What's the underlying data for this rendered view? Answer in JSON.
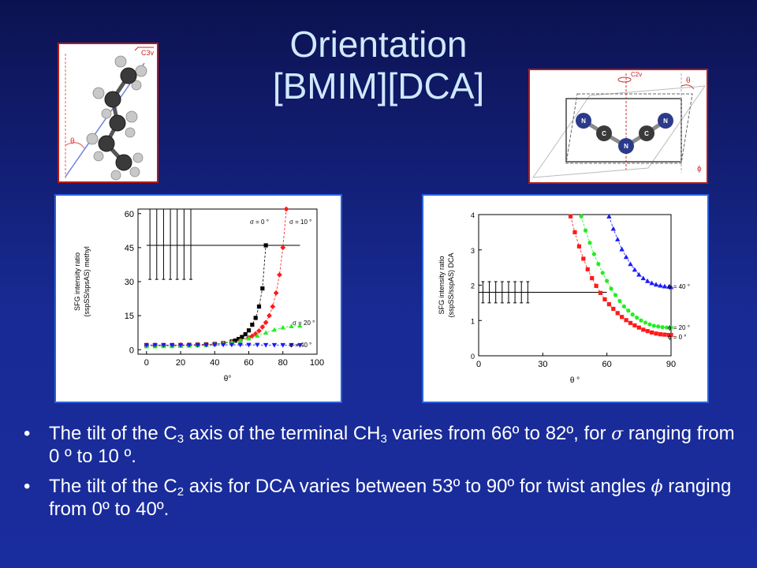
{
  "slide": {
    "title_line1": "Orientation",
    "title_line2": "[BMIM][DCA]",
    "bullets": [
      {
        "p1": "The tilt of the C",
        "sub1": "3",
        "p2": " axis of the terminal CH",
        "sub2": "3",
        "p3": " varies from 66º to 82º, for ",
        "greek": "σ",
        "p4": " ranging from 0 º to 10 º."
      },
      {
        "p1": "The tilt of the C",
        "sub1": "2",
        "p2": " axis for DCA varies between 53º to 90º for twist angles ",
        "greek": "ϕ",
        "p3": " ranging from 0º to 40º."
      }
    ]
  },
  "diagrams": {
    "left_label_axis": "C3v",
    "left_label_angle": "θ",
    "right_label_axis": "C2v",
    "right_label_angle": "θ",
    "right_label_twist": "ϕ",
    "atoms": [
      "N",
      "C",
      "N",
      "C",
      "N"
    ]
  },
  "colors": {
    "black": "#000000",
    "red": "#ff1a1a",
    "green": "#22ee22",
    "blue": "#1a1aff"
  },
  "chart_data": [
    {
      "type": "scatter",
      "xlabel": "θ°",
      "ylabel_line1": "SFG intensity ratio",
      "ylabel_line2": "(sspSS/spsAS) methyl",
      "xlim": [
        -5,
        100
      ],
      "ylim": [
        -2,
        62
      ],
      "xticks": [
        0,
        20,
        40,
        60,
        80,
        100
      ],
      "yticks": [
        0,
        15,
        30,
        45,
        60
      ],
      "reference": {
        "y": 46,
        "x": [
          0,
          90
        ],
        "bars_x": [
          2,
          6,
          10,
          14,
          18,
          22,
          26
        ],
        "bar_low": 31,
        "bar_high": 62
      },
      "series": [
        {
          "name": "σ = 0 °",
          "color": "#000000",
          "marker": "square",
          "x": [
            0,
            5,
            10,
            15,
            20,
            25,
            30,
            35,
            40,
            45,
            50,
            52,
            54,
            56,
            58,
            60,
            62,
            64,
            66,
            68,
            70
          ],
          "y": [
            2,
            2,
            2,
            2,
            2,
            2.1,
            2.2,
            2.3,
            2.5,
            2.9,
            3.6,
            4,
            4.7,
            5.6,
            6.8,
            8.5,
            11,
            14,
            19,
            27,
            46
          ]
        },
        {
          "name": "σ = 10 °",
          "color": "#ff1a1a",
          "marker": "diamond",
          "x": [
            0,
            5,
            10,
            15,
            20,
            25,
            30,
            35,
            40,
            45,
            50,
            55,
            60,
            62,
            64,
            66,
            68,
            70,
            72,
            74,
            76,
            78,
            80,
            82
          ],
          "y": [
            2,
            2,
            2,
            2,
            2.1,
            2.1,
            2.2,
            2.3,
            2.5,
            2.8,
            3.3,
            4,
            5.3,
            6,
            7,
            8.3,
            10,
            12,
            15,
            19,
            25,
            33,
            45,
            62
          ]
        },
        {
          "name": "σ = 20 °",
          "color": "#22ee22",
          "marker": "triangle-up",
          "x": [
            0,
            5,
            10,
            15,
            20,
            25,
            30,
            35,
            40,
            45,
            50,
            55,
            60,
            65,
            70,
            75,
            80,
            85,
            90
          ],
          "y": [
            1.5,
            1.5,
            1.6,
            1.6,
            1.7,
            1.8,
            1.9,
            2.1,
            2.4,
            2.8,
            3.3,
            4,
            5,
            6.2,
            7.5,
            8.8,
            9.8,
            10.4,
            10.6
          ]
        },
        {
          "name": "σ = 40 °",
          "color": "#1a1aff",
          "marker": "triangle-down",
          "x": [
            0,
            5,
            10,
            15,
            20,
            25,
            30,
            35,
            40,
            45,
            50,
            55,
            60,
            65,
            70,
            75,
            80,
            85,
            90
          ],
          "y": [
            2,
            2,
            2,
            2,
            2,
            2,
            2,
            2,
            2.1,
            2.1,
            2.1,
            2.1,
            2.1,
            2.1,
            2,
            2,
            2,
            2,
            2
          ]
        }
      ],
      "annotations": [
        "σ = 0 °",
        "σ = 10 °",
        "σ = 20 °",
        "σ = 40 °"
      ]
    },
    {
      "type": "scatter",
      "xlabel": "θ °",
      "ylabel_line1": "SFG intensity ratio",
      "ylabel_line2": "(sspSS/sspAS) DCA",
      "xlim": [
        0,
        90
      ],
      "ylim": [
        0,
        4
      ],
      "xticks": [
        0,
        30,
        60,
        90
      ],
      "yticks": [
        0,
        1,
        2,
        3,
        4
      ],
      "reference": {
        "y": 1.8,
        "x": [
          0,
          60
        ],
        "bars_x": [
          2,
          5,
          8,
          11,
          14,
          17,
          20,
          23
        ],
        "bar_low": 1.5,
        "bar_high": 2.1
      },
      "series": [
        {
          "name": "ϕ = 0 °",
          "color": "#ff1a1a",
          "marker": "square",
          "x": [
            43,
            45,
            47,
            49,
            51,
            53,
            55,
            57,
            59,
            61,
            63,
            65,
            67,
            69,
            71,
            73,
            75,
            77,
            79,
            81,
            83,
            85,
            87,
            89,
            90
          ],
          "y": [
            3.95,
            3.5,
            3.1,
            2.75,
            2.45,
            2.2,
            1.98,
            1.78,
            1.6,
            1.46,
            1.33,
            1.21,
            1.1,
            1.01,
            0.93,
            0.86,
            0.8,
            0.74,
            0.7,
            0.66,
            0.63,
            0.61,
            0.6,
            0.59,
            0.59
          ]
        },
        {
          "name": "ϕ = 20 °",
          "color": "#22ee22",
          "marker": "circle",
          "x": [
            48,
            50,
            52,
            54,
            56,
            58,
            60,
            62,
            64,
            66,
            68,
            70,
            72,
            74,
            76,
            78,
            80,
            82,
            84,
            86,
            88,
            90
          ],
          "y": [
            3.95,
            3.55,
            3.2,
            2.88,
            2.6,
            2.35,
            2.12,
            1.9,
            1.72,
            1.55,
            1.4,
            1.28,
            1.17,
            1.08,
            1.0,
            0.94,
            0.89,
            0.85,
            0.83,
            0.81,
            0.8,
            0.8
          ]
        },
        {
          "name": "ϕ = 40 °",
          "color": "#1a1aff",
          "marker": "triangle-up",
          "x": [
            61,
            63,
            65,
            67,
            69,
            71,
            73,
            75,
            77,
            79,
            81,
            83,
            85,
            87,
            89,
            90
          ],
          "y": [
            3.95,
            3.6,
            3.3,
            3.02,
            2.8,
            2.6,
            2.44,
            2.3,
            2.2,
            2.12,
            2.06,
            2.02,
            1.99,
            1.97,
            1.96,
            1.95
          ]
        }
      ],
      "annotations": [
        "ϕ = 40 °",
        "ϕ = 20 °",
        "ϕ = 0 °"
      ]
    }
  ]
}
